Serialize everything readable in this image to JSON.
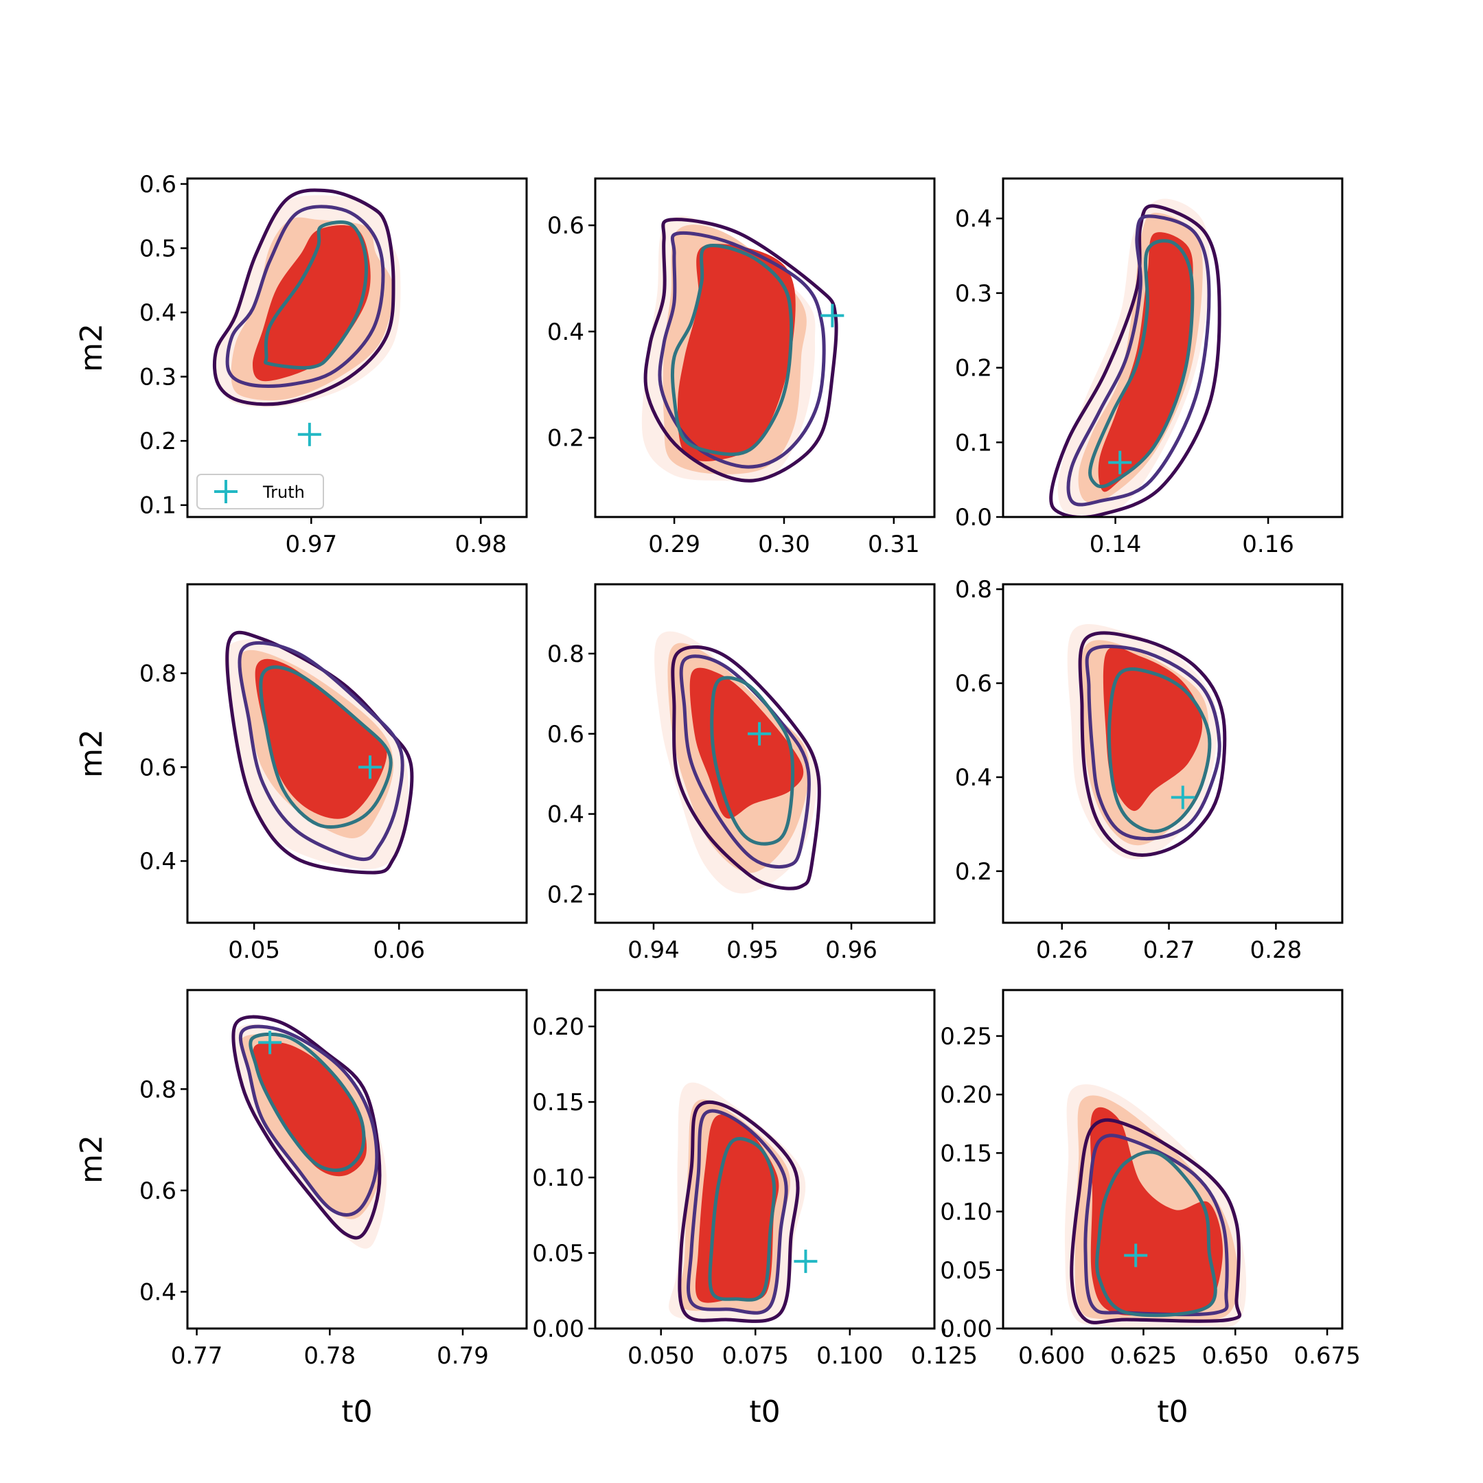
{
  "figure": {
    "colors": {
      "fill_outer": "#fdeee8",
      "fill_mid": "#f9c8ae",
      "fill_inner": "#e03228",
      "contour_outer": "#3c0a52",
      "contour_mid": "#4a3280",
      "contour_inner": "#2f7582",
      "truth": "#22b8c4"
    }
  },
  "chart_data": [
    {
      "type": "contour",
      "xlabel": "",
      "ylabel": "m2",
      "xlim": [
        0.9627,
        0.9827
      ],
      "ylim": [
        0.0815,
        0.6085
      ],
      "xticks": [
        "0.97",
        "0.98"
      ],
      "yticks": [
        "0.1",
        "0.2",
        "0.3",
        "0.4",
        "0.5",
        "0.6"
      ],
      "truth": {
        "x": 0.9699,
        "y": 0.21
      },
      "legend": {
        "label": "Truth",
        "position": "lower-left"
      }
    },
    {
      "type": "contour",
      "xlabel": "",
      "ylabel": "",
      "xlim": [
        0.2828,
        0.3137
      ],
      "ylim": [
        0.0508,
        0.6881
      ],
      "xticks": [
        "0.29",
        "0.30",
        "0.31"
      ],
      "yticks": [
        "0.2",
        "0.4",
        "0.6"
      ],
      "truth": {
        "x": 0.3044,
        "y": 0.43
      }
    },
    {
      "type": "contour",
      "xlabel": "",
      "ylabel": "",
      "xlim": [
        0.1253,
        0.1697
      ],
      "ylim": [
        0.0,
        0.4535
      ],
      "xticks": [
        "0.14",
        "0.16"
      ],
      "yticks": [
        "0.0",
        "0.1",
        "0.2",
        "0.3",
        "0.4"
      ],
      "truth": {
        "x": 0.1406,
        "y": 0.073
      }
    },
    {
      "type": "contour",
      "xlabel": "",
      "ylabel": "m2",
      "xlim": [
        0.0454,
        0.0688
      ],
      "ylim": [
        0.2685,
        0.9895
      ],
      "xticks": [
        "0.05",
        "0.06"
      ],
      "yticks": [
        "0.4",
        "0.6",
        "0.8"
      ],
      "truth": {
        "x": 0.058,
        "y": 0.6
      }
    },
    {
      "type": "contour",
      "xlabel": "",
      "ylabel": "",
      "xlim": [
        0.9341,
        0.9684
      ],
      "ylim": [
        0.1287,
        0.9729
      ],
      "xticks": [
        "0.94",
        "0.95",
        "0.96"
      ],
      "yticks": [
        "0.2",
        "0.4",
        "0.6",
        "0.8"
      ],
      "truth": {
        "x": 0.9507,
        "y": 0.6
      }
    },
    {
      "type": "contour",
      "xlabel": "",
      "ylabel": "",
      "xlim": [
        0.2545,
        0.2862
      ],
      "ylim": [
        0.0902,
        0.8105
      ],
      "xticks": [
        "0.26",
        "0.27",
        "0.28"
      ],
      "yticks": [
        "0.2",
        "0.4",
        "0.6",
        "0.8"
      ],
      "truth": {
        "x": 0.2713,
        "y": 0.357
      }
    },
    {
      "type": "contour",
      "xlabel": "t0",
      "ylabel": "m2",
      "xlim": [
        0.7693,
        0.7948
      ],
      "ylim": [
        0.3275,
        0.9955
      ],
      "xticks": [
        "0.77",
        "0.78",
        "0.79"
      ],
      "yticks": [
        "0.4",
        "0.6",
        "0.8"
      ],
      "truth": {
        "x": 0.7755,
        "y": 0.892
      }
    },
    {
      "type": "contour",
      "xlabel": "t0",
      "ylabel": "",
      "xlim": [
        0.0326,
        0.1224
      ],
      "ylim": [
        0.0,
        0.2241
      ],
      "xticks": [
        "0.050",
        "0.075",
        "0.100",
        "0.125"
      ],
      "yticks": [
        "0.00",
        "0.05",
        "0.10",
        "0.15",
        "0.20"
      ],
      "truth": {
        "x": 0.0883,
        "y": 0.0445
      }
    },
    {
      "type": "contour",
      "xlabel": "t0",
      "ylabel": "",
      "xlim": [
        0.5868,
        0.6791
      ],
      "ylim": [
        0.0,
        0.2893
      ],
      "xticks": [
        "0.600",
        "0.625",
        "0.650",
        "0.675"
      ],
      "yticks": [
        "0.00",
        "0.05",
        "0.10",
        "0.15",
        "0.20",
        "0.25"
      ],
      "truth": {
        "x": 0.6229,
        "y": 0.0625
      }
    }
  ]
}
